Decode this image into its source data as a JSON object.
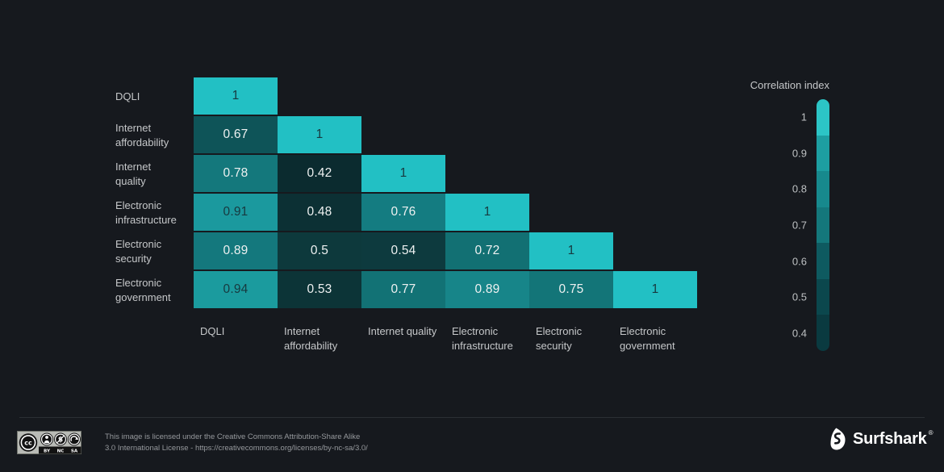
{
  "colors": {
    "background": "#16191e",
    "label": "#c5c7c9",
    "tick": "#bdc0c2",
    "divider": "#2b2f34",
    "value_text_light": "#eef1f1",
    "value_text_dark": "#17393f",
    "license_text": "#96999d",
    "brand": "#ffffff"
  },
  "chart_data": {
    "type": "heatmap",
    "title": "",
    "layout": {
      "shape": "lower-triangle correlation matrix",
      "legend_position": "right",
      "grid": false
    },
    "categories": [
      "DQLI",
      "Internet affordability",
      "Internet quality",
      "Electronic infrastructure",
      "Electronic security",
      "Electronic government"
    ],
    "values_matrix": [
      [
        1,
        null,
        null,
        null,
        null,
        null
      ],
      [
        0.67,
        1,
        null,
        null,
        null,
        null
      ],
      [
        0.78,
        0.42,
        1,
        null,
        null,
        null
      ],
      [
        0.91,
        0.48,
        0.76,
        1,
        null,
        null
      ],
      [
        0.89,
        0.5,
        0.54,
        0.72,
        1,
        null
      ],
      [
        0.94,
        0.53,
        0.77,
        0.89,
        0.75,
        1
      ]
    ],
    "rows": [
      {
        "label": "DQLI",
        "cells": [
          {
            "value": "1",
            "color": "#22c0c4",
            "text": "dark"
          }
        ]
      },
      {
        "label": "Internet affordability",
        "cells": [
          {
            "value": "0.67",
            "color": "#0e5458",
            "text": "light"
          },
          {
            "value": "1",
            "color": "#22c0c4",
            "text": "dark"
          }
        ]
      },
      {
        "label": "Internet quality",
        "cells": [
          {
            "value": "0.78",
            "color": "#14787c",
            "text": "light"
          },
          {
            "value": "0.42",
            "color": "#0b2b2f",
            "text": "light"
          },
          {
            "value": "1",
            "color": "#22c0c4",
            "text": "dark"
          }
        ]
      },
      {
        "label": "Electronic infrastructure",
        "cells": [
          {
            "value": "0.91",
            "color": "#1b999e",
            "text": "dark"
          },
          {
            "value": "0.48",
            "color": "#0c3034",
            "text": "light"
          },
          {
            "value": "0.76",
            "color": "#147c81",
            "text": "light"
          },
          {
            "value": "1",
            "color": "#22c0c4",
            "text": "dark"
          }
        ]
      },
      {
        "label": "Electronic security",
        "cells": [
          {
            "value": "0.89",
            "color": "#14787d",
            "text": "light"
          },
          {
            "value": "0.5",
            "color": "#0d393c",
            "text": "light"
          },
          {
            "value": "0.54",
            "color": "#0d3a3e",
            "text": "light"
          },
          {
            "value": "0.72",
            "color": "#127073",
            "text": "light"
          },
          {
            "value": "1",
            "color": "#22c0c4",
            "text": "dark"
          }
        ]
      },
      {
        "label": "Electronic government",
        "cells": [
          {
            "value": "0.94",
            "color": "#1b9b9e",
            "text": "dark"
          },
          {
            "value": "0.53",
            "color": "#0c3437",
            "text": "light"
          },
          {
            "value": "0.77",
            "color": "#127275",
            "text": "light"
          },
          {
            "value": "0.89",
            "color": "#178589",
            "text": "light"
          },
          {
            "value": "0.75",
            "color": "#137578",
            "text": "light"
          },
          {
            "value": "1",
            "color": "#22c0c4",
            "text": "dark"
          }
        ]
      }
    ],
    "legend": {
      "title": "Correlation index",
      "ticks": [
        "1",
        "0.9",
        "0.8",
        "0.7",
        "0.6",
        "0.5",
        "0.4"
      ],
      "segment_colors": [
        "#2cc5c6",
        "#1d9ea1",
        "#17898d",
        "#14777b",
        "#0e5a60",
        "#0b474d",
        "#0a3a40"
      ]
    }
  },
  "footer": {
    "license_line1": "This image is licensed under the Creative Commons Attribution-Share Alike",
    "license_line2": "3.0 International License - https://creativecommons.org/licenses/by-nc-sa/3.0/",
    "cc_badge": {
      "cc_text": "cc",
      "labels": [
        "BY",
        "NC",
        "SA"
      ]
    },
    "brand": {
      "name": "Surfshark",
      "registered": "®"
    }
  }
}
